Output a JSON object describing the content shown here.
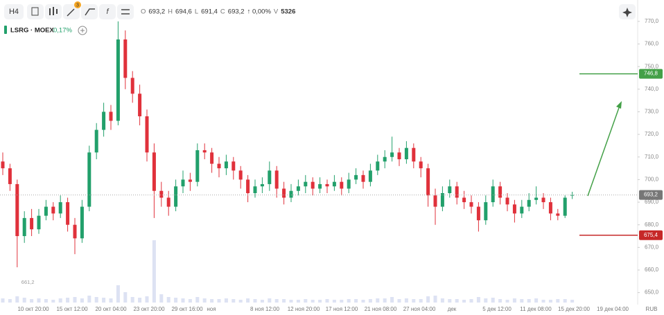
{
  "toolbar": {
    "timeframe": "H4",
    "badge": "3"
  },
  "header": {
    "ohlc": [
      {
        "label": "O",
        "value": "693,2"
      },
      {
        "label": "H",
        "value": "694,6"
      },
      {
        "label": "L",
        "value": "691,4"
      },
      {
        "label": "C",
        "value": "693,2"
      }
    ],
    "change": "↑ 0,00%",
    "volume_label": "V",
    "volume": "5326"
  },
  "legend": {
    "ticker": "LSRG · MOEX",
    "change": "0,17%"
  },
  "chart_data": {
    "type": "candlestick",
    "up_color": "#22a06b",
    "down_color": "#e0313b",
    "open": [
      708,
      705,
      698,
      675,
      683,
      678,
      684,
      688,
      685,
      690,
      680,
      674,
      688,
      712,
      722,
      730,
      726,
      762,
      745,
      738,
      728,
      712,
      695,
      692,
      688,
      697,
      700,
      699,
      713,
      712,
      707,
      705,
      708,
      704,
      700,
      694,
      697,
      698,
      704,
      696,
      692,
      695,
      697,
      699,
      696,
      698,
      697,
      699,
      696,
      700,
      702,
      699,
      704,
      708,
      710,
      712,
      709,
      714,
      708,
      705,
      693,
      688,
      694,
      697,
      692,
      690,
      688,
      682,
      690,
      697,
      692,
      689,
      685,
      688,
      691,
      692,
      690,
      685,
      684,
      693.2
    ],
    "high": [
      712,
      707,
      700,
      686,
      687,
      687,
      691,
      690,
      693,
      692,
      683,
      691,
      715,
      725,
      734,
      733,
      770,
      766,
      748,
      742,
      731,
      716,
      699,
      695,
      700,
      704,
      703,
      716,
      716,
      714,
      710,
      711,
      710,
      706,
      702,
      700,
      701,
      708,
      706,
      699,
      698,
      700,
      702,
      701,
      701,
      700,
      702,
      701,
      703,
      705,
      704,
      707,
      711,
      713,
      719,
      714,
      717,
      716,
      710,
      707,
      696,
      697,
      700,
      699,
      695,
      693,
      690,
      693,
      700,
      699,
      694,
      691,
      691,
      694,
      697,
      694,
      692,
      687,
      693,
      694.6
    ],
    "low": [
      702,
      695,
      661.2,
      672,
      675,
      676,
      682,
      682,
      683,
      677,
      667,
      672,
      686,
      709,
      719,
      722,
      724,
      740,
      734,
      724,
      708,
      683,
      688,
      684,
      686,
      694,
      695,
      697,
      709,
      703,
      701,
      702,
      700,
      696,
      690,
      692,
      694,
      695,
      692,
      689,
      690,
      693,
      694,
      693,
      694,
      694,
      695,
      693,
      694,
      698,
      696,
      697,
      702,
      705,
      708,
      706,
      707,
      705,
      701,
      688,
      680,
      686,
      692,
      689,
      687,
      685,
      677,
      680,
      688,
      689,
      686,
      681,
      683,
      686,
      689,
      687,
      682,
      682,
      683,
      691.4
    ],
    "close": [
      705,
      698,
      675,
      683,
      678,
      684,
      688,
      685,
      690,
      680,
      674,
      688,
      712,
      722,
      730,
      726,
      762,
      745,
      738,
      728,
      712,
      695,
      692,
      688,
      697,
      700,
      699,
      713,
      712,
      707,
      705,
      708,
      704,
      700,
      694,
      697,
      698,
      704,
      696,
      692,
      695,
      697,
      699,
      696,
      698,
      697,
      699,
      696,
      700,
      702,
      699,
      704,
      708,
      710,
      712,
      709,
      714,
      708,
      705,
      693,
      688,
      694,
      697,
      692,
      690,
      688,
      682,
      690,
      697,
      692,
      689,
      685,
      688,
      691,
      692,
      690,
      685,
      684,
      692,
      693.2
    ],
    "volumes": [
      6,
      5,
      9,
      7,
      5,
      6,
      5,
      4,
      6,
      7,
      8,
      6,
      10,
      8,
      7,
      6,
      25,
      15,
      8,
      7,
      9,
      90,
      12,
      8,
      7,
      6,
      5,
      8,
      6,
      5,
      5,
      6,
      5,
      4,
      6,
      5,
      4,
      6,
      5,
      5,
      4,
      4,
      5,
      4,
      4,
      5,
      4,
      4,
      5,
      5,
      4,
      5,
      6,
      6,
      8,
      5,
      6,
      5,
      5,
      9,
      10,
      6,
      5,
      5,
      4,
      5,
      8,
      6,
      7,
      5,
      4,
      6,
      5,
      5,
      6,
      4,
      4,
      5,
      5,
      4
    ],
    "ylim": [
      645.6,
      771.8
    ],
    "yticks": [
      {
        "value": 650,
        "label": "650,0"
      },
      {
        "value": 660,
        "label": "660,0"
      },
      {
        "value": 670,
        "label": "670,0"
      },
      {
        "value": 680,
        "label": "680,0"
      },
      {
        "value": 690,
        "label": "690,0"
      },
      {
        "value": 700,
        "label": "700,0"
      },
      {
        "value": 710,
        "label": "710,0"
      },
      {
        "value": 720,
        "label": "720,0"
      },
      {
        "value": 730,
        "label": "730,0"
      },
      {
        "value": 740,
        "label": "740,0"
      },
      {
        "value": 750,
        "label": "750,0"
      },
      {
        "value": 760,
        "label": "760,0"
      },
      {
        "value": 770,
        "label": "770,0"
      }
    ],
    "x_labels": [
      "10 окт 20:00",
      "15 окт 12:00",
      "20 окт 04:00",
      "23 окт 20:00",
      "29 окт 16:00",
      "ноя",
      "8 ноя 12:00",
      "12 ноя 20:00",
      "17 ноя 12:00",
      "21 ноя 08:00",
      "27 ноя 04:00",
      "дек",
      "5 дек 12:00",
      "11 дек 08:00",
      "15 дек 20:00",
      "19 дек 04:00"
    ],
    "currency": "RUB",
    "current_price": {
      "value": 693.2,
      "label": "693,2"
    },
    "levels": [
      {
        "value": 746.8,
        "label": "746,8",
        "color": "#43a047"
      },
      {
        "value": 675.4,
        "label": "675,4",
        "color": "#c62828"
      }
    ],
    "low_annotation": "661,2"
  }
}
